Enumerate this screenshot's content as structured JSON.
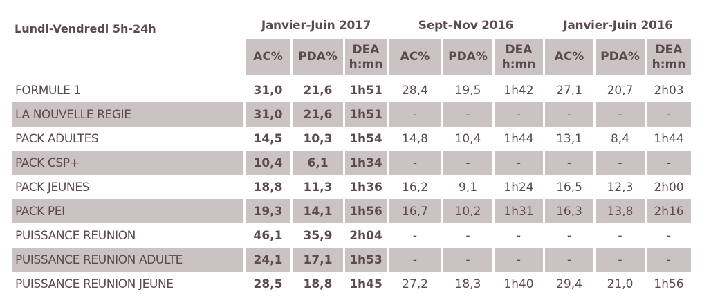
{
  "title": "Lundi-Vendredi  5h-24h",
  "groups": [
    "Janvier-Juin 2017",
    "Sept-Nov 2016",
    "Janvier-Juin 2016"
  ],
  "columns": [
    "AC%",
    "PDA%",
    "DEA h:mn",
    "AC%",
    "PDA%",
    "DEA h:mn",
    "AC%",
    "PDA%",
    "DEA h:mn"
  ],
  "rows": [
    {
      "label": "FORMULE 1",
      "values": [
        "31,0",
        "21,6",
        "1h51",
        "28,4",
        "19,5",
        "1h42",
        "27,1",
        "20,7",
        "2h03"
      ]
    },
    {
      "label": "LA NOUVELLE REGIE",
      "values": [
        "31,0",
        "21,6",
        "1h51",
        "-",
        "-",
        "-",
        "-",
        "-",
        "-"
      ]
    },
    {
      "label": "PACK ADULTES",
      "values": [
        "14,5",
        "10,3",
        "1h54",
        "14,8",
        "10,4",
        "1h44",
        "13,1",
        "8,4",
        "1h44"
      ]
    },
    {
      "label": "PACK CSP+",
      "values": [
        "10,4",
        "6,1",
        "1h34",
        "-",
        "-",
        "-",
        "-",
        "-",
        "-"
      ]
    },
    {
      "label": "PACK JEUNES",
      "values": [
        "18,8",
        "11,3",
        "1h36",
        "16,2",
        "9,1",
        "1h24",
        "16,5",
        "12,3",
        "2h00"
      ]
    },
    {
      "label": "PACK PEI",
      "values": [
        "19,3",
        "14,1",
        "1h56",
        "16,7",
        "10,2",
        "1h31",
        "16,3",
        "13,8",
        "2h16"
      ]
    },
    {
      "label": "PUISSANCE REUNION",
      "values": [
        "46,1",
        "35,9",
        "2h04",
        "-",
        "-",
        "-",
        "-",
        "-",
        "-"
      ]
    },
    {
      "label": "PUISSANCE REUNION ADULTE",
      "values": [
        "24,1",
        "17,1",
        "1h53",
        "-",
        "-",
        "-",
        "-",
        "-",
        "-"
      ]
    },
    {
      "label": "PUISSANCE REUNION JEUNE",
      "values": [
        "28,5",
        "18,8",
        "1h45",
        "27,2",
        "18,3",
        "1h40",
        "29,4",
        "21,0",
        "1h56"
      ]
    }
  ]
}
